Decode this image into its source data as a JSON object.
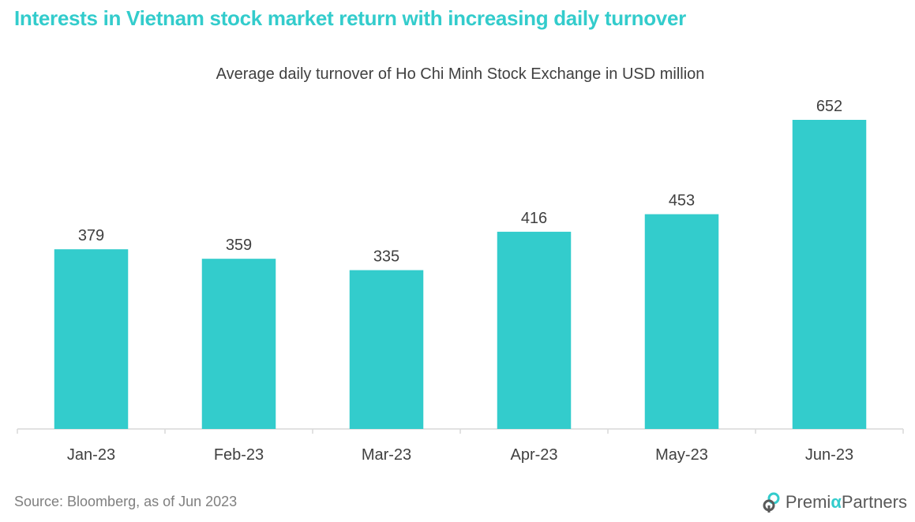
{
  "headline": "Interests in Vietnam stock market return with increasing daily turnover",
  "source": "Source: Bloomberg,  as of Jun 2023",
  "logo": {
    "part1": "Premi",
    "alpha": "α",
    "part2": "Partners"
  },
  "colors": {
    "bar": "#33CCCC",
    "headline": "#33CCCC",
    "text": "#404040",
    "axis": "#D9D9D9"
  },
  "chart_data": {
    "type": "bar",
    "title": "Average daily turnover of Ho Chi Minh Stock Exchange in USD million",
    "categories": [
      "Jan-23",
      "Feb-23",
      "Mar-23",
      "Apr-23",
      "May-23",
      "Jun-23"
    ],
    "values": [
      379,
      359,
      335,
      416,
      453,
      652
    ],
    "data_labels": [
      "379",
      "359",
      "335",
      "416",
      "453",
      "652"
    ],
    "xlabel": "",
    "ylabel": "",
    "ylim": [
      0,
      652
    ],
    "grid": false,
    "legend": "none"
  }
}
